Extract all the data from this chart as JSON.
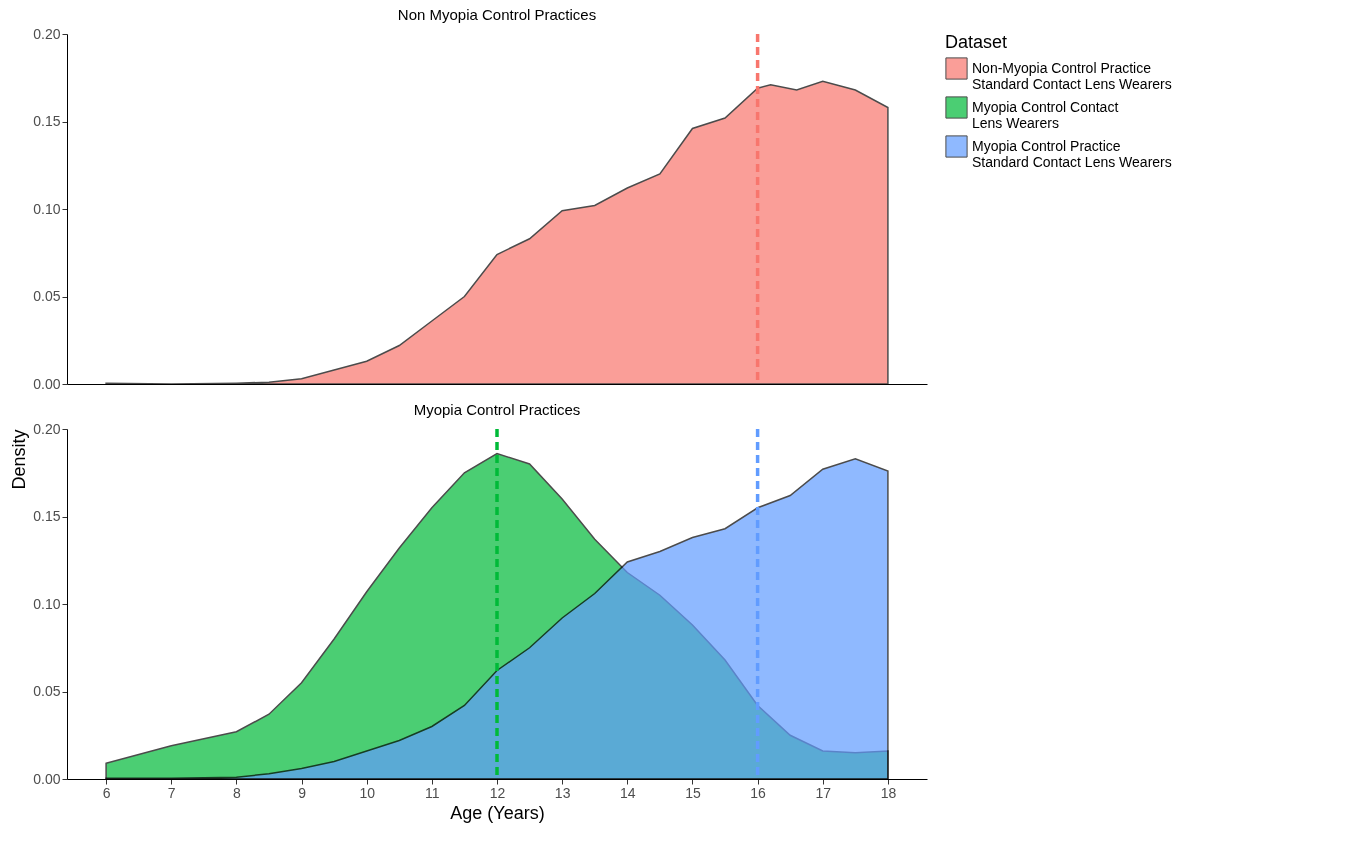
{
  "chart_data": [
    {
      "type": "area",
      "title": "Non Myopia Control Practices",
      "x": [
        6,
        7,
        8,
        8.5,
        9,
        9.5,
        10,
        10.5,
        11,
        11.5,
        12,
        12.5,
        13,
        13.5,
        14,
        14.5,
        15,
        15.5,
        16,
        16.2,
        16.6,
        17,
        17.5,
        18
      ],
      "series": [
        {
          "name": "Non-Myopia Control Practice\n Standard Contact Lens Wearers",
          "color": "#f8766d",
          "values": [
            0.0004,
            0,
            0.0005,
            0.001,
            0.003,
            0.008,
            0.013,
            0.022,
            0.036,
            0.05,
            0.074,
            0.083,
            0.099,
            0.102,
            0.112,
            0.12,
            0.146,
            0.152,
            0.169,
            0.171,
            0.168,
            0.173,
            0.168,
            0.158
          ]
        }
      ],
      "xlim": [
        5.4,
        18.6
      ],
      "ylim": [
        0,
        0.2
      ],
      "yticks": [
        {
          "value": 0,
          "label": "0.00"
        },
        {
          "value": 0.05,
          "label": "0.05"
        },
        {
          "value": 0.1,
          "label": "0.10"
        },
        {
          "value": 0.15,
          "label": "0.15"
        },
        {
          "value": 0.2,
          "label": "0.20"
        }
      ],
      "tick_labels": "y",
      "legend": "right",
      "legend_title": "Dataset",
      "ref_lines": [
        {
          "axis": "x",
          "value": 16,
          "color": "#f8766d",
          "line_style": "dashed"
        }
      ]
    },
    {
      "type": "area",
      "title": "Myopia Control Practices",
      "xlabel": "Age (Years)",
      "ylabel": "Density",
      "x": [
        6,
        7,
        8,
        8.5,
        9,
        9.5,
        10,
        10.5,
        11,
        11.5,
        12,
        12.5,
        13,
        13.5,
        14,
        14.5,
        15,
        15.5,
        16,
        16.5,
        17,
        17.5,
        18
      ],
      "series": [
        {
          "name": "Myopia Control Contact\n Lens Wearers",
          "color": "#00ba38",
          "values": [
            0.009,
            0.019,
            0.027,
            0.037,
            0.055,
            0.08,
            0.107,
            0.132,
            0.155,
            0.175,
            0.186,
            0.18,
            0.16,
            0.137,
            0.118,
            0.105,
            0.088,
            0.068,
            0.042,
            0.025,
            0.016,
            0.015,
            0.016
          ]
        },
        {
          "name": "Myopia Control Practice\n Standard Contact Lens Wearers",
          "color": "#619cff",
          "values": [
            0.0005,
            0.0005,
            0.001,
            0.003,
            0.006,
            0.01,
            0.016,
            0.022,
            0.03,
            0.042,
            0.062,
            0.075,
            0.092,
            0.106,
            0.124,
            0.13,
            0.138,
            0.143,
            0.155,
            0.162,
            0.177,
            0.183,
            0.176
          ]
        }
      ],
      "xlim": [
        5.4,
        18.6
      ],
      "xticks": [
        6,
        7,
        8,
        9,
        10,
        11,
        12,
        13,
        14,
        15,
        16,
        17,
        18
      ],
      "ylim": [
        0,
        0.2
      ],
      "yticks": [
        {
          "value": 0,
          "label": "0.00"
        },
        {
          "value": 0.05,
          "label": "0.05"
        },
        {
          "value": 0.1,
          "label": "0.10"
        },
        {
          "value": 0.15,
          "label": "0.15"
        },
        {
          "value": 0.2,
          "label": "0.20"
        }
      ],
      "legend": "right",
      "ref_lines": [
        {
          "axis": "x",
          "value": 12,
          "color": "#00ba38",
          "line_style": "dashed"
        },
        {
          "axis": "x",
          "value": 16,
          "color": "#619cff",
          "line_style": "dashed"
        }
      ]
    }
  ]
}
